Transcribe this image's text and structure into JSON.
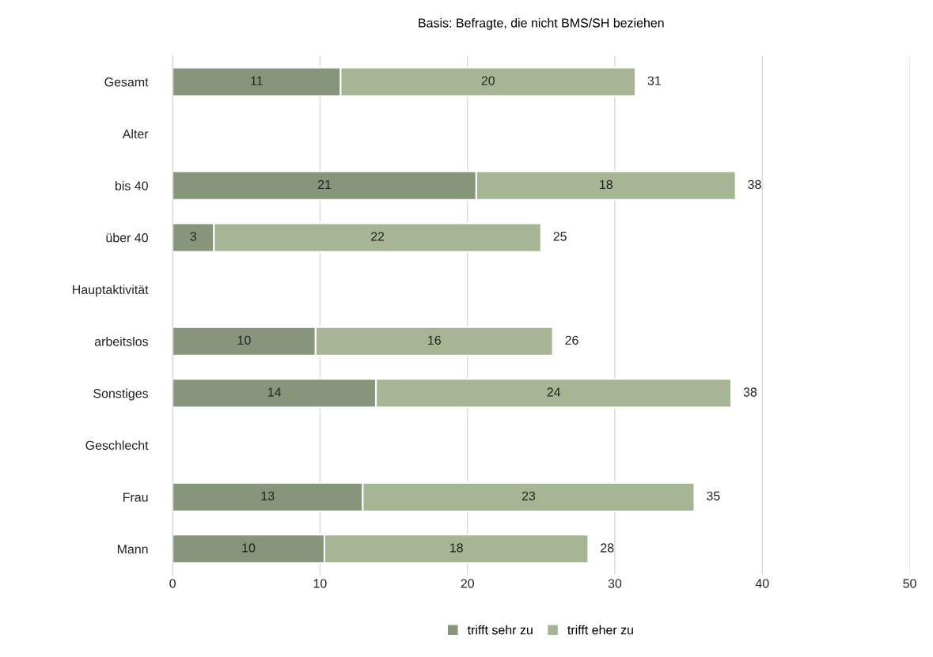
{
  "chart_data": {
    "type": "bar",
    "orientation": "horizontal",
    "stacked": true,
    "title": "Basis: Befragte, die nicht BMS/SH beziehen",
    "categories": [
      "Gesamt",
      "Alter",
      "bis 40",
      "über 40",
      "Hauptaktivität",
      "arbeitslos",
      "Sonstiges",
      "Geschlecht",
      "Frau",
      "Mann"
    ],
    "series": [
      {
        "name": "trifft sehr zu",
        "color": "#87967a",
        "values": [
          11.4,
          null,
          20.6,
          2.8,
          null,
          9.7,
          13.8,
          null,
          12.9,
          10.3
        ],
        "value_labels": [
          "11",
          null,
          "21",
          "3",
          null,
          "10",
          "14",
          null,
          "13",
          "10"
        ]
      },
      {
        "name": "trifft eher zu",
        "color": "#a6b593",
        "values": [
          20.0,
          null,
          17.6,
          22.2,
          null,
          16.1,
          24.1,
          null,
          22.5,
          17.9
        ],
        "value_labels": [
          "20",
          null,
          "18",
          "22",
          null,
          "16",
          "24",
          null,
          "23",
          "18"
        ]
      }
    ],
    "totals": [
      "31",
      null,
      "38",
      "25",
      null,
      "26",
      "38",
      null,
      "35",
      "28"
    ],
    "xlim": [
      0,
      50
    ],
    "xticks": [
      0,
      10,
      20,
      30,
      40,
      50
    ],
    "grid": "x",
    "legend": "bottom"
  }
}
